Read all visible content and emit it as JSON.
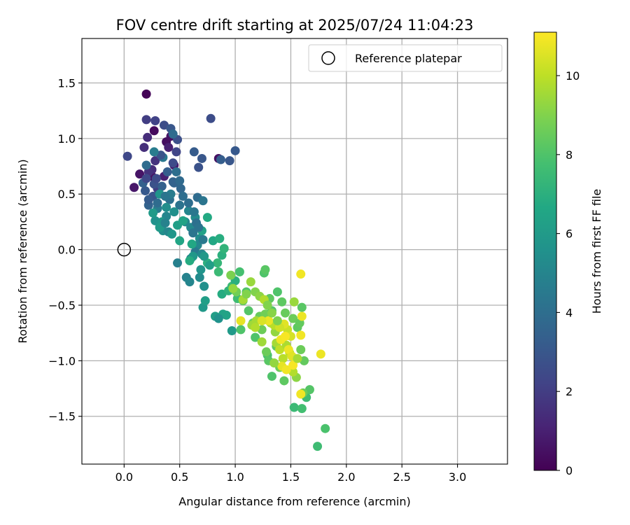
{
  "chart_data": {
    "type": "scatter",
    "title": "FOV centre drift starting at 2025/07/24 11:04:23",
    "xlabel": "Angular distance from reference (arcmin)",
    "ylabel": "Rotation from reference (arcmin)",
    "xlim": [
      -0.38,
      3.45
    ],
    "ylim": [
      -1.93,
      1.9
    ],
    "xticks": [
      0.0,
      0.5,
      1.0,
      1.5,
      2.0,
      2.5,
      3.0
    ],
    "xtick_labels": [
      "0.0",
      "0.5",
      "1.0",
      "1.5",
      "2.0",
      "2.5",
      "3.0"
    ],
    "yticks": [
      -1.5,
      -1.0,
      -0.5,
      0.0,
      0.5,
      1.0,
      1.5
    ],
    "ytick_labels": [
      "−1.5",
      "−1.0",
      "−0.5",
      "0.0",
      "0.5",
      "1.0",
      "1.5"
    ],
    "grid": true,
    "legend": {
      "placement": "upper right",
      "entries": [
        {
          "label": "Reference platepar",
          "marker": "open-circle"
        }
      ]
    },
    "reference_point": {
      "x": 0.0,
      "y": 0.0,
      "label": "Reference platepar"
    },
    "colorbar": {
      "label": "Hours from first FF file",
      "colormap": "viridis",
      "range": [
        0,
        11.1
      ],
      "ticks": [
        0,
        2,
        4,
        6,
        8,
        10
      ],
      "tick_labels": [
        "0",
        "2",
        "4",
        "6",
        "8",
        "10"
      ]
    },
    "points": [
      {
        "x": 0.2,
        "y": 1.4,
        "c": 0.1
      },
      {
        "x": 0.27,
        "y": 1.07,
        "c": 0.3
      },
      {
        "x": 0.25,
        "y": 0.66,
        "c": 0.5
      },
      {
        "x": 0.14,
        "y": 0.68,
        "c": 0.6
      },
      {
        "x": 0.09,
        "y": 0.56,
        "c": 0.7
      },
      {
        "x": 0.38,
        "y": 0.97,
        "c": 0.4
      },
      {
        "x": 0.42,
        "y": 1.02,
        "c": 0.5
      },
      {
        "x": 0.45,
        "y": 0.76,
        "c": 0.8
      },
      {
        "x": 0.36,
        "y": 0.66,
        "c": 1.0
      },
      {
        "x": 0.85,
        "y": 0.82,
        "c": 0.5
      },
      {
        "x": 0.4,
        "y": 0.92,
        "c": 1.0
      },
      {
        "x": 0.21,
        "y": 1.01,
        "c": 1.4
      },
      {
        "x": 0.18,
        "y": 0.92,
        "c": 1.5
      },
      {
        "x": 0.28,
        "y": 0.8,
        "c": 1.6
      },
      {
        "x": 0.25,
        "y": 0.72,
        "c": 1.4
      },
      {
        "x": 0.22,
        "y": 0.7,
        "c": 1.6
      },
      {
        "x": 0.3,
        "y": 0.55,
        "c": 2.0
      },
      {
        "x": 0.44,
        "y": 0.78,
        "c": 2.5
      },
      {
        "x": 0.2,
        "y": 1.17,
        "c": 2.0
      },
      {
        "x": 0.28,
        "y": 1.16,
        "c": 2.2
      },
      {
        "x": 0.36,
        "y": 1.12,
        "c": 2.6
      },
      {
        "x": 0.42,
        "y": 1.09,
        "c": 3.0
      },
      {
        "x": 0.78,
        "y": 1.18,
        "c": 2.6
      },
      {
        "x": 0.03,
        "y": 0.84,
        "c": 2.4
      },
      {
        "x": 0.47,
        "y": 0.88,
        "c": 2.3
      },
      {
        "x": 0.63,
        "y": 0.88,
        "c": 3.2
      },
      {
        "x": 0.7,
        "y": 0.82,
        "c": 3.0
      },
      {
        "x": 0.67,
        "y": 0.74,
        "c": 2.8
      },
      {
        "x": 0.95,
        "y": 0.8,
        "c": 3.0
      },
      {
        "x": 1.0,
        "y": 0.89,
        "c": 3.1
      },
      {
        "x": 0.87,
        "y": 0.81,
        "c": 3.3
      },
      {
        "x": 0.26,
        "y": 0.48,
        "c": 2.9
      },
      {
        "x": 0.19,
        "y": 0.53,
        "c": 3.1
      },
      {
        "x": 0.22,
        "y": 0.4,
        "c": 3.5
      },
      {
        "x": 0.17,
        "y": 0.6,
        "c": 3.4
      },
      {
        "x": 0.34,
        "y": 0.57,
        "c": 3.4
      },
      {
        "x": 0.45,
        "y": 0.6,
        "c": 3.6
      },
      {
        "x": 0.51,
        "y": 0.55,
        "c": 3.7
      },
      {
        "x": 0.47,
        "y": 0.7,
        "c": 4.0
      },
      {
        "x": 0.53,
        "y": 0.48,
        "c": 4.0
      },
      {
        "x": 0.5,
        "y": 0.4,
        "c": 4.2
      },
      {
        "x": 0.41,
        "y": 0.45,
        "c": 4.1
      },
      {
        "x": 0.66,
        "y": 0.47,
        "c": 3.9
      },
      {
        "x": 0.71,
        "y": 0.44,
        "c": 4.3
      },
      {
        "x": 0.48,
        "y": 0.99,
        "c": 2.7
      },
      {
        "x": 0.2,
        "y": 0.76,
        "c": 3.9
      },
      {
        "x": 0.35,
        "y": 0.83,
        "c": 4.4
      },
      {
        "x": 0.3,
        "y": 0.37,
        "c": 4.6
      },
      {
        "x": 0.38,
        "y": 0.3,
        "c": 5.0
      },
      {
        "x": 0.42,
        "y": 0.5,
        "c": 4.6
      },
      {
        "x": 0.55,
        "y": 0.25,
        "c": 5.2
      },
      {
        "x": 0.58,
        "y": 0.35,
        "c": 5.0
      },
      {
        "x": 0.64,
        "y": 0.29,
        "c": 5.3
      },
      {
        "x": 0.6,
        "y": 0.2,
        "c": 5.2
      },
      {
        "x": 0.68,
        "y": 0.1,
        "c": 5.4
      },
      {
        "x": 0.66,
        "y": 0.04,
        "c": 5.1
      },
      {
        "x": 0.64,
        "y": -0.02,
        "c": 4.5
      },
      {
        "x": 0.7,
        "y": -0.04,
        "c": 5.2
      },
      {
        "x": 0.6,
        "y": -0.08,
        "c": 4.8
      },
      {
        "x": 0.48,
        "y": -0.12,
        "c": 4.8
      },
      {
        "x": 0.56,
        "y": -0.25,
        "c": 4.9
      },
      {
        "x": 0.59,
        "y": -0.29,
        "c": 5.0
      },
      {
        "x": 0.68,
        "y": -0.25,
        "c": 5.3
      },
      {
        "x": 0.72,
        "y": -0.33,
        "c": 5.5
      },
      {
        "x": 0.69,
        "y": -0.18,
        "c": 5.7
      },
      {
        "x": 0.71,
        "y": -0.52,
        "c": 5.9
      },
      {
        "x": 0.73,
        "y": -0.46,
        "c": 6.2
      },
      {
        "x": 0.28,
        "y": 0.26,
        "c": 5.6
      },
      {
        "x": 0.34,
        "y": 0.25,
        "c": 5.8
      },
      {
        "x": 0.35,
        "y": 0.17,
        "c": 5.4
      },
      {
        "x": 0.32,
        "y": 0.2,
        "c": 6.0
      },
      {
        "x": 0.48,
        "y": 0.22,
        "c": 6.2
      },
      {
        "x": 0.5,
        "y": 0.08,
        "c": 6.5
      },
      {
        "x": 0.61,
        "y": 0.05,
        "c": 6.6
      },
      {
        "x": 0.7,
        "y": 0.17,
        "c": 6.3
      },
      {
        "x": 0.75,
        "y": 0.29,
        "c": 6.7
      },
      {
        "x": 0.8,
        "y": 0.08,
        "c": 6.6
      },
      {
        "x": 0.86,
        "y": 0.1,
        "c": 6.9
      },
      {
        "x": 0.88,
        "y": -0.05,
        "c": 7.0
      },
      {
        "x": 0.9,
        "y": 0.01,
        "c": 7.2
      },
      {
        "x": 0.84,
        "y": -0.12,
        "c": 7.3
      },
      {
        "x": 0.75,
        "y": -0.12,
        "c": 7.0
      },
      {
        "x": 0.85,
        "y": -0.2,
        "c": 7.5
      },
      {
        "x": 0.88,
        "y": -0.4,
        "c": 6.8
      },
      {
        "x": 0.94,
        "y": -0.37,
        "c": 7.1
      },
      {
        "x": 0.97,
        "y": -0.33,
        "c": 7.5
      },
      {
        "x": 0.97,
        "y": -0.73,
        "c": 6.0
      },
      {
        "x": 0.82,
        "y": -0.6,
        "c": 6.2
      },
      {
        "x": 0.89,
        "y": -0.58,
        "c": 6.4
      },
      {
        "x": 1.0,
        "y": -0.28,
        "c": 7.0
      },
      {
        "x": 1.02,
        "y": -0.44,
        "c": 7.6
      },
      {
        "x": 1.04,
        "y": -0.2,
        "c": 7.8
      },
      {
        "x": 1.1,
        "y": -0.38,
        "c": 8.0
      },
      {
        "x": 1.07,
        "y": -0.46,
        "c": 8.3
      },
      {
        "x": 1.05,
        "y": -0.72,
        "c": 8.0
      },
      {
        "x": 1.12,
        "y": -0.55,
        "c": 8.1
      },
      {
        "x": 1.16,
        "y": -0.66,
        "c": 8.5
      },
      {
        "x": 1.18,
        "y": -0.79,
        "c": 8.0
      },
      {
        "x": 1.22,
        "y": -0.6,
        "c": 8.5
      },
      {
        "x": 1.24,
        "y": -0.72,
        "c": 8.6
      },
      {
        "x": 1.27,
        "y": -0.58,
        "c": 8.7
      },
      {
        "x": 1.26,
        "y": -0.21,
        "c": 8.0
      },
      {
        "x": 1.27,
        "y": -0.18,
        "c": 8.2
      },
      {
        "x": 1.31,
        "y": -0.44,
        "c": 8.3
      },
      {
        "x": 1.33,
        "y": -0.55,
        "c": 8.1
      },
      {
        "x": 1.29,
        "y": -0.95,
        "c": 7.9
      },
      {
        "x": 1.3,
        "y": -1.0,
        "c": 8.2
      },
      {
        "x": 1.33,
        "y": -1.14,
        "c": 8.0
      },
      {
        "x": 1.28,
        "y": -0.92,
        "c": 8.6
      },
      {
        "x": 1.37,
        "y": -0.87,
        "c": 8.4
      },
      {
        "x": 1.4,
        "y": -1.06,
        "c": 8.6
      },
      {
        "x": 1.44,
        "y": -1.18,
        "c": 8.3
      },
      {
        "x": 1.38,
        "y": -0.38,
        "c": 8.0
      },
      {
        "x": 1.42,
        "y": -0.47,
        "c": 8.3
      },
      {
        "x": 1.45,
        "y": -0.57,
        "c": 8.5
      },
      {
        "x": 1.52,
        "y": -0.62,
        "c": 8.6
      },
      {
        "x": 1.56,
        "y": -0.7,
        "c": 8.3
      },
      {
        "x": 1.6,
        "y": -0.52,
        "c": 8.2
      },
      {
        "x": 1.58,
        "y": -0.66,
        "c": 8.4
      },
      {
        "x": 1.59,
        "y": -0.9,
        "c": 8.6
      },
      {
        "x": 1.62,
        "y": -1.0,
        "c": 8.4
      },
      {
        "x": 1.53,
        "y": -1.42,
        "c": 7.5
      },
      {
        "x": 1.6,
        "y": -1.43,
        "c": 7.7
      },
      {
        "x": 1.64,
        "y": -1.33,
        "c": 7.6
      },
      {
        "x": 1.67,
        "y": -1.26,
        "c": 8.1
      },
      {
        "x": 1.61,
        "y": -1.29,
        "c": 8.6
      },
      {
        "x": 1.74,
        "y": -1.77,
        "c": 7.6
      },
      {
        "x": 1.81,
        "y": -1.61,
        "c": 7.9
      },
      {
        "x": 1.55,
        "y": -1.15,
        "c": 9.2
      },
      {
        "x": 1.36,
        "y": -0.74,
        "c": 9.3
      },
      {
        "x": 1.18,
        "y": -0.38,
        "c": 9.0
      },
      {
        "x": 1.14,
        "y": -0.29,
        "c": 9.4
      },
      {
        "x": 1.15,
        "y": -0.68,
        "c": 9.5
      },
      {
        "x": 1.19,
        "y": -0.64,
        "c": 9.6
      },
      {
        "x": 1.24,
        "y": -0.83,
        "c": 9.5
      },
      {
        "x": 1.22,
        "y": -0.42,
        "c": 9.2
      },
      {
        "x": 1.26,
        "y": -0.45,
        "c": 9.8
      },
      {
        "x": 1.32,
        "y": -0.66,
        "c": 9.7
      },
      {
        "x": 1.35,
        "y": -0.68,
        "c": 9.9
      },
      {
        "x": 1.37,
        "y": -0.84,
        "c": 9.6
      },
      {
        "x": 1.4,
        "y": -0.9,
        "c": 10.0
      },
      {
        "x": 1.43,
        "y": -0.98,
        "c": 9.9
      },
      {
        "x": 1.46,
        "y": -0.86,
        "c": 9.7
      },
      {
        "x": 1.49,
        "y": -0.93,
        "c": 10.1
      },
      {
        "x": 1.52,
        "y": -1.1,
        "c": 9.8
      },
      {
        "x": 1.47,
        "y": -0.72,
        "c": 10.2
      },
      {
        "x": 1.5,
        "y": -0.78,
        "c": 10.4
      },
      {
        "x": 1.44,
        "y": -0.67,
        "c": 10.6
      },
      {
        "x": 1.41,
        "y": -0.81,
        "c": 10.9
      },
      {
        "x": 1.45,
        "y": -0.78,
        "c": 11.0
      },
      {
        "x": 1.48,
        "y": -0.9,
        "c": 10.8
      },
      {
        "x": 1.51,
        "y": -0.96,
        "c": 10.6
      },
      {
        "x": 1.42,
        "y": -1.05,
        "c": 10.7
      },
      {
        "x": 1.46,
        "y": -1.08,
        "c": 10.9
      },
      {
        "x": 1.52,
        "y": -1.04,
        "c": 11.0
      },
      {
        "x": 1.3,
        "y": -0.64,
        "c": 10.8
      },
      {
        "x": 1.24,
        "y": -0.64,
        "c": 10.5
      },
      {
        "x": 1.05,
        "y": -0.64,
        "c": 10.7
      },
      {
        "x": 1.07,
        "y": -0.45,
        "c": 9.6
      },
      {
        "x": 1.1,
        "y": -0.4,
        "c": 9.0
      },
      {
        "x": 1.01,
        "y": -0.38,
        "c": 8.7
      },
      {
        "x": 0.98,
        "y": -0.35,
        "c": 9.3
      },
      {
        "x": 1.59,
        "y": -0.22,
        "c": 10.9
      },
      {
        "x": 1.6,
        "y": -0.6,
        "c": 10.8
      },
      {
        "x": 1.59,
        "y": -0.77,
        "c": 10.9
      },
      {
        "x": 1.77,
        "y": -0.94,
        "c": 10.8
      },
      {
        "x": 1.59,
        "y": -1.3,
        "c": 10.9
      },
      {
        "x": 1.4,
        "y": -0.7,
        "c": 10.3
      },
      {
        "x": 1.33,
        "y": -0.57,
        "c": 9.1
      },
      {
        "x": 1.29,
        "y": -0.5,
        "c": 9.0
      },
      {
        "x": 1.38,
        "y": -0.64,
        "c": 8.9
      },
      {
        "x": 0.96,
        "y": -0.23,
        "c": 8.9
      },
      {
        "x": 1.53,
        "y": -0.47,
        "c": 9.4
      },
      {
        "x": 1.56,
        "y": -0.98,
        "c": 9.6
      },
      {
        "x": 1.35,
        "y": -1.02,
        "c": 9.3
      },
      {
        "x": 1.18,
        "y": -0.7,
        "c": 9.8
      },
      {
        "x": 0.32,
        "y": 0.5,
        "c": 5.7
      },
      {
        "x": 0.38,
        "y": 0.38,
        "c": 5.4
      },
      {
        "x": 0.26,
        "y": 0.33,
        "c": 6.0
      },
      {
        "x": 0.37,
        "y": 0.24,
        "c": 4.9
      },
      {
        "x": 0.4,
        "y": 0.16,
        "c": 5.1
      },
      {
        "x": 0.45,
        "y": 0.34,
        "c": 5.5
      },
      {
        "x": 0.62,
        "y": 0.15,
        "c": 4.3
      },
      {
        "x": 0.65,
        "y": 0.24,
        "c": 4.1
      },
      {
        "x": 0.63,
        "y": 0.34,
        "c": 4.4
      },
      {
        "x": 0.58,
        "y": 0.42,
        "c": 4.0
      },
      {
        "x": 0.67,
        "y": 0.2,
        "c": 4.2
      },
      {
        "x": 0.71,
        "y": 0.09,
        "c": 4.5
      },
      {
        "x": 0.62,
        "y": -0.06,
        "c": 5.9
      },
      {
        "x": 0.59,
        "y": -0.1,
        "c": 6.8
      },
      {
        "x": 0.72,
        "y": -0.06,
        "c": 5.9
      },
      {
        "x": 0.77,
        "y": -0.14,
        "c": 6.2
      },
      {
        "x": 0.92,
        "y": -0.59,
        "c": 6.4
      },
      {
        "x": 0.85,
        "y": -0.62,
        "c": 5.6
      },
      {
        "x": 0.43,
        "y": 0.14,
        "c": 5.8
      },
      {
        "x": 0.53,
        "y": 0.26,
        "c": 6.4
      },
      {
        "x": 0.22,
        "y": 0.45,
        "c": 3.2
      },
      {
        "x": 0.27,
        "y": 0.59,
        "c": 2.8
      },
      {
        "x": 0.29,
        "y": 0.64,
        "c": 2.5
      },
      {
        "x": 0.2,
        "y": 0.64,
        "c": 2.4
      },
      {
        "x": 0.33,
        "y": 0.85,
        "c": 2.9
      },
      {
        "x": 0.39,
        "y": 0.7,
        "c": 3.3
      },
      {
        "x": 0.44,
        "y": 0.61,
        "c": 3.5
      },
      {
        "x": 0.27,
        "y": 0.88,
        "c": 4.6
      },
      {
        "x": 0.44,
        "y": 1.04,
        "c": 3.9
      },
      {
        "x": 0.5,
        "y": 0.62,
        "c": 3.8
      },
      {
        "x": 0.3,
        "y": 0.42,
        "c": 3.9
      },
      {
        "x": 0.37,
        "y": 0.48,
        "c": 4.3
      }
    ]
  }
}
